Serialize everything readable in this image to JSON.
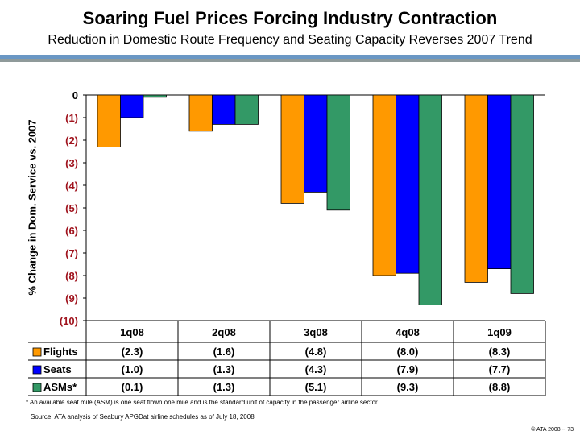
{
  "title": "Soaring Fuel Prices Forcing Industry Contraction",
  "subtitle": "Reduction in Domestic Route Frequency and Seating Capacity Reverses 2007 Trend",
  "footnote": "* An available seat mile (ASM) is one seat flown one mile and is the standard unit of capacity in the passenger airline sector",
  "source": "Source: ATA analysis of Seabury APGDat airline schedules as of July 18, 2008",
  "copyright": "© ATA 2008 -- 73",
  "chart_data": {
    "type": "bar",
    "ylabel": "% Change in Dom. Service vs. 2007",
    "ylim": [
      -10,
      0
    ],
    "yticks": [
      "0",
      "(1)",
      "(2)",
      "(3)",
      "(4)",
      "(5)",
      "(6)",
      "(7)",
      "(8)",
      "(9)",
      "(10)"
    ],
    "categories": [
      "1q08",
      "2q08",
      "3q08",
      "4q08",
      "1q09"
    ],
    "series": [
      {
        "name": "Flights",
        "color": "#ff9900",
        "values": [
          -2.3,
          -1.6,
          -4.8,
          -8.0,
          -8.3
        ],
        "labels": [
          "(2.3)",
          "(1.6)",
          "(4.8)",
          "(8.0)",
          "(8.3)"
        ]
      },
      {
        "name": "Seats",
        "color": "#0000ff",
        "values": [
          -1.0,
          -1.3,
          -4.3,
          -7.9,
          -7.7
        ],
        "labels": [
          "(1.0)",
          "(1.3)",
          "(4.3)",
          "(7.9)",
          "(7.7)"
        ]
      },
      {
        "name": "ASMs*",
        "color": "#339966",
        "values": [
          -0.1,
          -1.3,
          -5.1,
          -9.3,
          -8.8
        ],
        "labels": [
          "(0.1)",
          "(1.3)",
          "(5.1)",
          "(9.3)",
          "(8.8)"
        ]
      }
    ],
    "legend": "data-table",
    "grid": false
  }
}
